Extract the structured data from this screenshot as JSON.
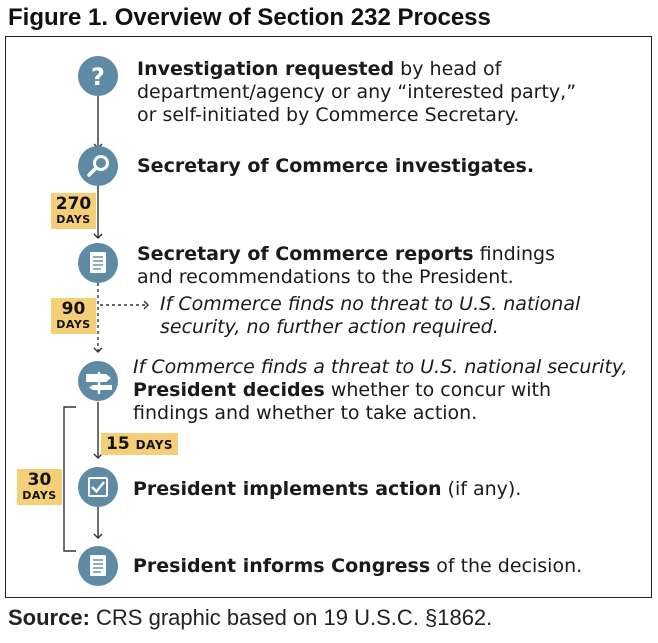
{
  "title": "Figure 1. Overview of Section 232 Process",
  "source": {
    "label": "Source:",
    "text": " CRS graphic based on 19 U.S.C. §1862."
  },
  "colors": {
    "node": "#5f8aa3",
    "badge": "#f5cf78",
    "line": "#333333"
  },
  "steps": [
    {
      "icon": "question-icon",
      "bold": "Investigation requested",
      "rest": " by head of",
      "line2": "department/agency or any “interested party,”",
      "line3": "or self-initiated by Commerce Secretary."
    },
    {
      "icon": "magnifier-icon",
      "bold": "Secretary of Commerce investigates."
    },
    {
      "icon": "document-icon",
      "bold": "Secretary of Commerce reports",
      "rest": " findings",
      "line2": "and recommendations to the President."
    },
    {
      "icon": "signpost-icon",
      "pre": "If Commerce finds a threat to U.S. national security,",
      "bold": "President decides",
      "rest": " whether to concur with",
      "line3": "findings and whether to take action."
    },
    {
      "icon": "checkbox-icon",
      "bold": "President implements action",
      "rest": " (if any)."
    },
    {
      "icon": "document-icon",
      "bold": "President informs Congress",
      "rest": " of the decision."
    }
  ],
  "branch": {
    "line1": "If Commerce finds no threat to U.S. national",
    "line2": "security, no further action required."
  },
  "badges": {
    "b270": {
      "num": "270",
      "unit": "DAYS"
    },
    "b90": {
      "num": "90",
      "unit": "DAYS"
    },
    "b15": {
      "num": "15",
      "unit": "DAYS"
    },
    "b30": {
      "num": "30",
      "unit": "DAYS"
    }
  }
}
